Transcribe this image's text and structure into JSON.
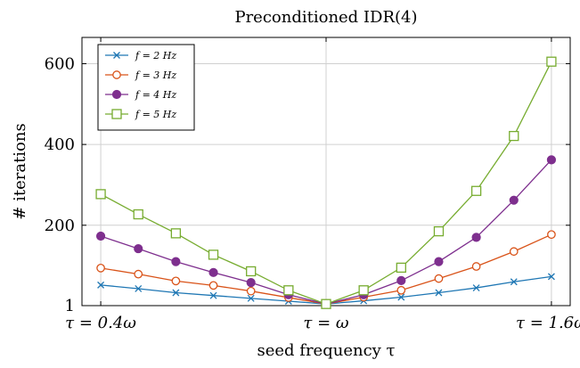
{
  "chart_data": {
    "type": "line",
    "title": "Preconditioned IDR(4)",
    "xlabel": "seed frequency τ",
    "ylabel": "# iterations",
    "x": [
      0.4,
      0.5,
      0.6,
      0.7,
      0.8,
      0.9,
      1.0,
      1.1,
      1.2,
      1.3,
      1.4,
      1.5,
      1.6
    ],
    "xlim": [
      0.35,
      1.65
    ],
    "ylim": [
      1,
      665
    ],
    "xtick_values": [
      0.4,
      1.0,
      1.6
    ],
    "xtick_labels": [
      "τ = 0.4ω",
      "τ = ω",
      "τ = 1.6ω"
    ],
    "ytick_values": [
      1,
      200,
      400,
      600
    ],
    "ytick_labels": [
      "1",
      "200",
      "400",
      "600"
    ],
    "grid": true,
    "legend_position": "top-left",
    "series": [
      {
        "name": "f = 2 Hz",
        "color": "#1f77b4",
        "marker": "x",
        "values": [
          52,
          43,
          33,
          26,
          19,
          12,
          5,
          13,
          22,
          33,
          45,
          60,
          73
        ]
      },
      {
        "name": "f = 3 Hz",
        "color": "#d95319",
        "marker": "circle-open",
        "values": [
          94,
          79,
          62,
          51,
          37,
          21,
          5,
          22,
          39,
          68,
          98,
          135,
          177
        ]
      },
      {
        "name": "f = 4 Hz",
        "color": "#7e2f8e",
        "marker": "circle-filled",
        "values": [
          173,
          142,
          110,
          83,
          58,
          28,
          5,
          28,
          63,
          110,
          170,
          262,
          362
        ]
      },
      {
        "name": "f = 5 Hz",
        "color": "#77ac30",
        "marker": "square-open",
        "values": [
          277,
          227,
          180,
          127,
          86,
          39,
          5,
          39,
          95,
          185,
          285,
          421,
          605
        ]
      }
    ]
  }
}
